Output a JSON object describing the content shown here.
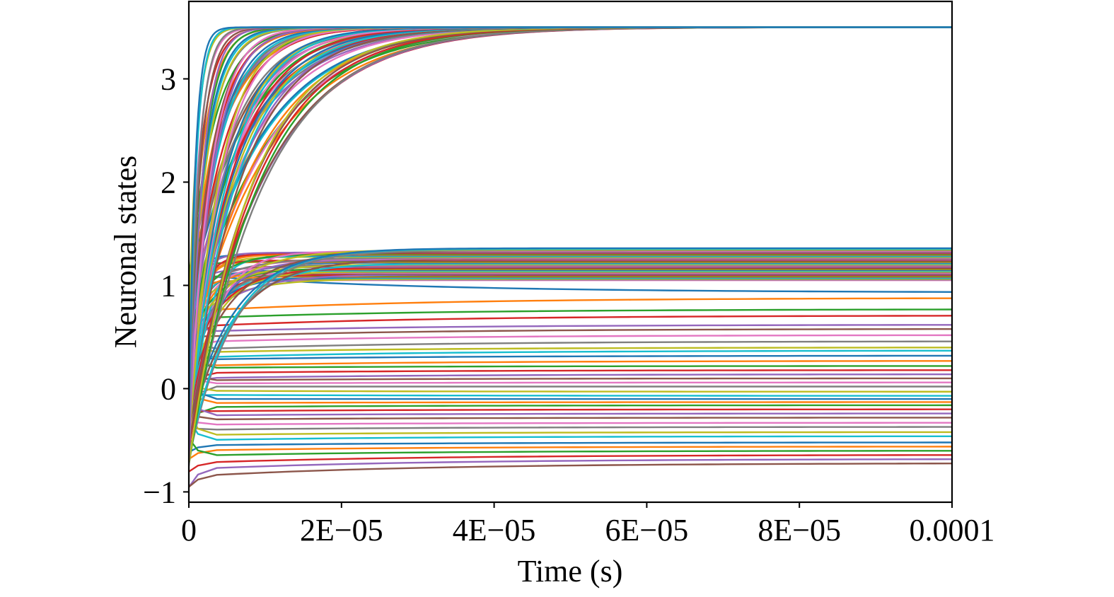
{
  "chart_data": {
    "type": "line",
    "title": "",
    "xlabel": "Time (s)",
    "ylabel": "Neuronal states",
    "xlim": [
      0,
      0.0001
    ],
    "ylim": [
      -1.1,
      3.75
    ],
    "x_ticks": [
      {
        "value": 0,
        "label": "0"
      },
      {
        "value": 2e-05,
        "label": "2E−05"
      },
      {
        "value": 4e-05,
        "label": "4E−05"
      },
      {
        "value": 6e-05,
        "label": "6E−05"
      },
      {
        "value": 8e-05,
        "label": "8E−05"
      },
      {
        "value": 0.0001,
        "label": "0.0001"
      }
    ],
    "y_ticks": [
      {
        "value": -1,
        "label": "−1"
      },
      {
        "value": 0,
        "label": "0"
      },
      {
        "value": 1,
        "label": "1"
      },
      {
        "value": 2,
        "label": "2"
      },
      {
        "value": 3,
        "label": "3"
      }
    ],
    "grid": false,
    "legend": "none",
    "palette": [
      "#1f77b4",
      "#ff7f0e",
      "#2ca02c",
      "#d62728",
      "#9467bd",
      "#8c564b",
      "#e377c2",
      "#7f7f7f",
      "#bcbd22",
      "#17becf"
    ],
    "series_groups": [
      {
        "description_level": "saturating high state",
        "initial_range": [
          -0.8,
          1.1
        ],
        "final_value": 3.5,
        "time_constant_range": [
          8e-07,
          1.05e-05
        ],
        "count": 70
      },
      {
        "description_level": "middle band",
        "initial_range": [
          -0.7,
          1.1
        ],
        "final_range": [
          1.05,
          1.36
        ],
        "time_constant_range": [
          8e-07,
          6e-06
        ],
        "count": 45
      }
    ],
    "lower_traces": [
      {
        "start": 1.1,
        "end": 0.93
      },
      {
        "start": 0.75,
        "end": 0.88
      },
      {
        "start": 0.68,
        "end": 0.77
      },
      {
        "start": 0.6,
        "end": 0.71
      },
      {
        "start": 0.55,
        "end": 0.62
      },
      {
        "start": 0.5,
        "end": 0.58
      },
      {
        "start": 0.45,
        "end": 0.52
      },
      {
        "start": 0.38,
        "end": 0.46
      },
      {
        "start": 0.35,
        "end": 0.4
      },
      {
        "start": 0.3,
        "end": 0.37
      },
      {
        "start": 0.28,
        "end": 0.32
      },
      {
        "start": 0.22,
        "end": 0.27
      },
      {
        "start": 0.2,
        "end": 0.22
      },
      {
        "start": 0.15,
        "end": 0.18
      },
      {
        "start": 0.1,
        "end": 0.14
      },
      {
        "start": 0.08,
        "end": 0.1
      },
      {
        "start": 0.05,
        "end": 0.06
      },
      {
        "start": 0.02,
        "end": 0.02
      },
      {
        "start": -0.02,
        "end": -0.03
      },
      {
        "start": -0.06,
        "end": -0.07
      },
      {
        "start": -0.1,
        "end": -0.1
      },
      {
        "start": -0.14,
        "end": -0.13
      },
      {
        "start": -0.18,
        "end": -0.16
      },
      {
        "start": -0.22,
        "end": -0.2
      },
      {
        "start": -0.26,
        "end": -0.24
      },
      {
        "start": -0.3,
        "end": -0.28
      },
      {
        "start": -0.35,
        "end": -0.33
      },
      {
        "start": -0.4,
        "end": -0.37
      },
      {
        "start": -0.45,
        "end": -0.42
      },
      {
        "start": -0.5,
        "end": -0.46
      },
      {
        "start": -0.55,
        "end": -0.52
      },
      {
        "start": -0.6,
        "end": -0.56
      },
      {
        "start": -0.65,
        "end": -0.6
      },
      {
        "start": -0.72,
        "end": -0.64
      },
      {
        "start": -0.78,
        "end": -0.68
      },
      {
        "start": -0.85,
        "end": -0.72
      }
    ]
  }
}
